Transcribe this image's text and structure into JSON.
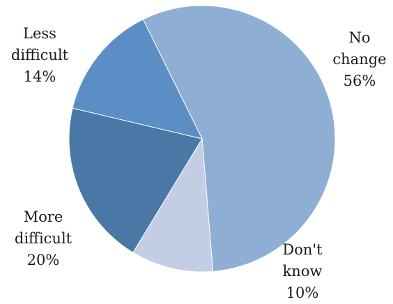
{
  "chart_data": {
    "type": "pie",
    "title": "",
    "slices": [
      {
        "name_lines": [
          "No",
          "change"
        ],
        "percent_label": "56%",
        "value": 56,
        "color": "#8eaed4"
      },
      {
        "name_lines": [
          "Don't",
          "know"
        ],
        "percent_label": "10%",
        "value": 10,
        "color": "#c3cee4"
      },
      {
        "name_lines": [
          "More",
          "difficult"
        ],
        "percent_label": "20%",
        "value": 20,
        "color": "#4a78a6"
      },
      {
        "name_lines": [
          "Less",
          "difficult"
        ],
        "percent_label": "14%",
        "value": 14,
        "color": "#5b8ec4"
      }
    ],
    "legend": "none",
    "labels": "outside-slices"
  }
}
